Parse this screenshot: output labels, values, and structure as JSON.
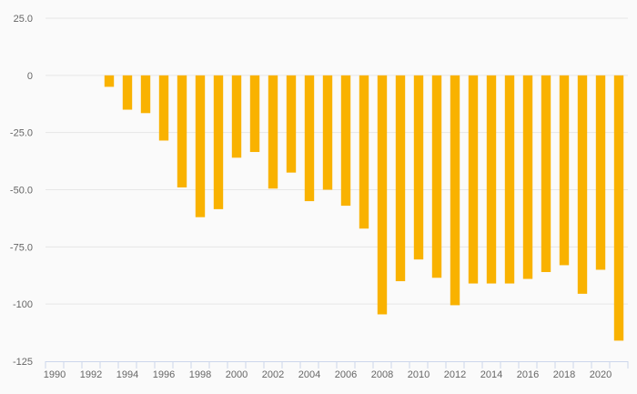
{
  "chart_data": {
    "type": "bar",
    "title": "",
    "xlabel": "",
    "ylabel": "",
    "x": [
      1990,
      1991,
      1992,
      1993,
      1994,
      1995,
      1996,
      1997,
      1998,
      1999,
      2000,
      2001,
      2002,
      2003,
      2004,
      2005,
      2006,
      2007,
      2008,
      2009,
      2010,
      2011,
      2012,
      2013,
      2014,
      2015,
      2016,
      2017,
      2018,
      2019,
      2020,
      2021
    ],
    "values": [
      null,
      null,
      null,
      -5,
      -15,
      -16.5,
      -28.5,
      -49,
      -62,
      -58.5,
      -36,
      -33.5,
      -49.5,
      -42.5,
      -55,
      -50,
      -57,
      -67,
      -104.5,
      -90,
      -80.5,
      -88.5,
      -100.5,
      -91,
      -91,
      -91,
      -89,
      -86,
      -83,
      -95.5,
      -85,
      -116
    ],
    "ylim": [
      -125,
      25
    ],
    "y_ticks": [
      25,
      0,
      -25,
      -50,
      -75,
      -100,
      -125
    ],
    "y_tick_labels": [
      "25.0",
      "0",
      "-25.0",
      "-50.0",
      "-75.0",
      "-100",
      "-125"
    ],
    "x_tick_labels": [
      "1990",
      "1992",
      "1994",
      "1996",
      "1998",
      "2000",
      "2002",
      "2004",
      "2006",
      "2008",
      "2010",
      "2012",
      "2014",
      "2016",
      "2018",
      "2020"
    ],
    "bar_color": "#f9b200",
    "grid": true,
    "legend": "none"
  }
}
